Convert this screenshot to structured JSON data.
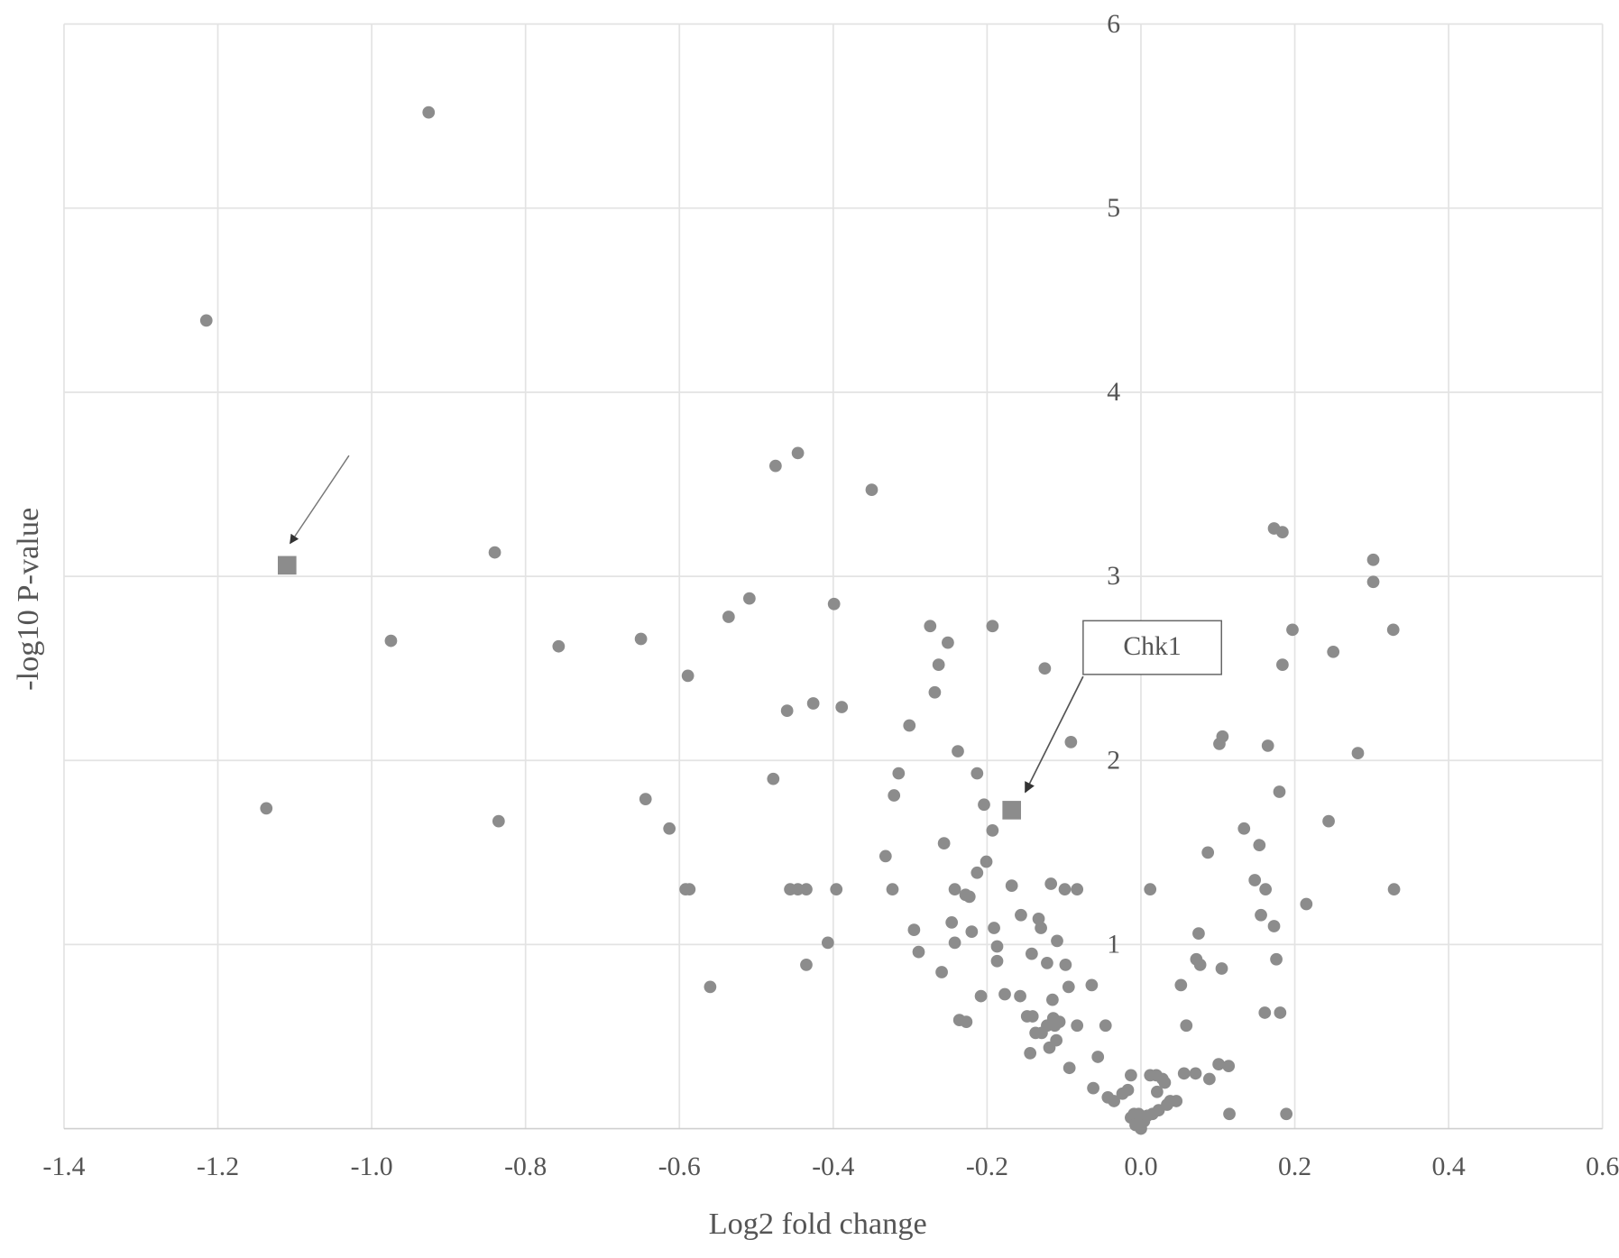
{
  "chart_data": {
    "type": "scatter",
    "xlabel": "Log2 fold change",
    "ylabel": "-log10 P-value",
    "annotation": "Chk1",
    "xlim": [
      -1.4,
      0.6
    ],
    "ylim": [
      0,
      6
    ],
    "xticks": [
      -1.4,
      -1.2,
      {
        "value": -1,
        "label": "-1.0"
      },
      -0.8,
      -0.6,
      -0.4,
      -0.2,
      {
        "value": 0,
        "label": "0.0"
      },
      0.2,
      0.4,
      0.6
    ],
    "yticks": [
      1,
      2,
      3,
      4,
      5,
      6
    ],
    "grid": true,
    "series": [
      {
        "marker": "circle",
        "color": "#8c8c8c",
        "x": [
          -0.926,
          -1.215,
          -1.137,
          -0.975,
          -0.84,
          -0.835,
          -0.757,
          -0.65,
          -0.644,
          -0.613,
          -0.589,
          -0.592,
          -0.587,
          -0.56,
          -0.536,
          -0.509,
          -0.475,
          -0.446,
          -0.478,
          -0.46,
          -0.456,
          -0.446,
          -0.435,
          -0.435,
          -0.426,
          -0.407,
          -0.399,
          -0.396,
          -0.389,
          -0.35,
          -0.332,
          -0.323,
          -0.321,
          -0.315,
          -0.301,
          -0.295,
          -0.289,
          -0.274,
          -0.268,
          -0.263,
          -0.259,
          -0.256,
          -0.251,
          -0.246,
          -0.242,
          -0.242,
          -0.238,
          -0.236,
          -0.227,
          -0.228,
          -0.223,
          -0.22,
          -0.213,
          -0.213,
          -0.208,
          -0.204,
          -0.201,
          -0.193,
          -0.193,
          -0.191,
          -0.187,
          -0.187,
          -0.177,
          -0.168,
          -0.157,
          -0.156,
          -0.148,
          -0.142,
          -0.144,
          -0.141,
          -0.137,
          -0.133,
          -0.13,
          -0.129,
          -0.125,
          -0.122,
          -0.122,
          -0.119,
          -0.117,
          -0.115,
          -0.114,
          -0.112,
          -0.11,
          -0.109,
          -0.106,
          -0.099,
          -0.098,
          -0.094,
          -0.093,
          -0.091,
          -0.083,
          -0.083,
          -0.064,
          -0.062,
          -0.056,
          -0.046,
          -0.043,
          -0.035,
          -0.024,
          -0.017,
          -0.013,
          -0.013,
          -0.009,
          -0.007,
          -0.003,
          0,
          0.004,
          0.008,
          0.012,
          0.012,
          0.015,
          0.02,
          0.021,
          0.023,
          0.028,
          0.031,
          0.034,
          0.038,
          0.046,
          0.052,
          0.056,
          0.059,
          0.071,
          0.072,
          0.075,
          0.077,
          0.087,
          0.089,
          0.101,
          0.102,
          0.106,
          0.105,
          0.114,
          0.115,
          0.134,
          0.148,
          0.154,
          0.156,
          0.161,
          0.162,
          0.165,
          0.173,
          0.176,
          0.173,
          0.18,
          0.181,
          0.184,
          0.184,
          0.189,
          0.197,
          0.215,
          0.244,
          0.25,
          0.282,
          0.302,
          0.302,
          0.328,
          0.329
        ],
        "values": [
          5.52,
          4.39,
          1.74,
          2.65,
          3.13,
          1.67,
          2.62,
          2.66,
          1.79,
          1.63,
          2.46,
          1.3,
          1.3,
          0.77,
          2.78,
          2.88,
          3.6,
          3.67,
          1.9,
          2.27,
          1.3,
          1.3,
          1.3,
          0.89,
          2.31,
          1.01,
          2.85,
          1.3,
          2.29,
          3.47,
          1.48,
          1.3,
          1.81,
          1.93,
          2.19,
          1.08,
          0.96,
          2.73,
          2.37,
          2.52,
          0.85,
          1.55,
          2.64,
          1.12,
          1.01,
          1.3,
          2.05,
          0.59,
          0.58,
          1.27,
          1.26,
          1.07,
          1.39,
          1.93,
          0.72,
          1.76,
          1.45,
          2.73,
          1.62,
          1.09,
          0.99,
          0.91,
          0.73,
          1.32,
          0.72,
          1.16,
          0.61,
          0.95,
          0.41,
          0.61,
          0.52,
          1.14,
          1.09,
          0.52,
          2.5,
          0.9,
          0.56,
          0.44,
          1.33,
          0.7,
          0.6,
          0.56,
          0.48,
          1.02,
          0.58,
          1.3,
          0.89,
          0.77,
          0.33,
          2.1,
          0.56,
          1.3,
          0.78,
          0.22,
          0.39,
          0.56,
          0.17,
          0.15,
          0.19,
          0.21,
          0.29,
          0.06,
          0.08,
          0.02,
          0.08,
          0,
          0.04,
          0.07,
          1.3,
          0.29,
          0.08,
          0.29,
          0.2,
          0.1,
          0.27,
          0.25,
          0.13,
          0.15,
          0.15,
          0.78,
          0.3,
          0.56,
          0.3,
          0.92,
          1.06,
          0.89,
          1.5,
          0.27,
          0.35,
          2.09,
          2.13,
          0.87,
          0.34,
          0.08,
          1.63,
          1.35,
          1.54,
          1.16,
          0.63,
          1.3,
          2.08,
          3.26,
          0.92,
          1.1,
          1.83,
          0.63,
          3.24,
          2.52,
          0.08,
          2.71,
          1.22,
          1.67,
          2.59,
          2.04,
          3.09,
          2.97,
          2.71,
          1.3
        ]
      },
      {
        "marker": "square",
        "color": "#8c8c8c",
        "x": [
          -1.11,
          -0.168
        ],
        "values": [
          3.06,
          1.73
        ]
      }
    ]
  }
}
